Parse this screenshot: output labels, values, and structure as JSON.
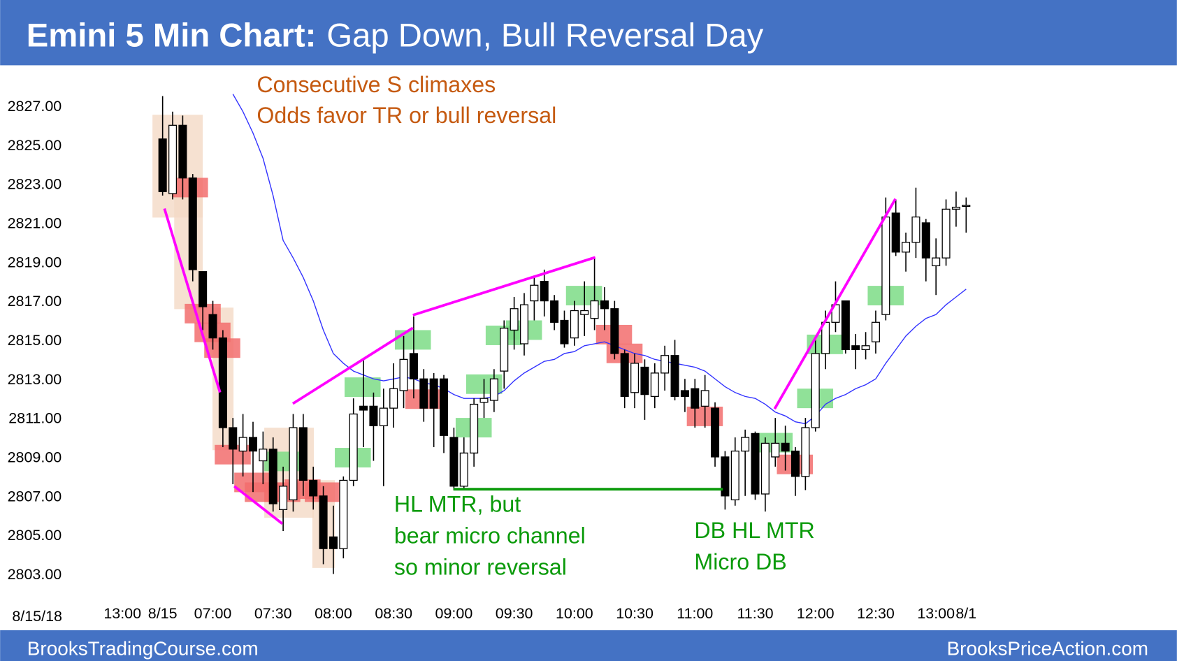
{
  "header": {
    "title_bold": "Emini 5 Min Chart:",
    "title_rest": "Gap Down, Bull Reversal Day"
  },
  "chart_data": {
    "type": "candlestick",
    "date_label": "8/15/18",
    "categories": [
      "13:00",
      null,
      null,
      null,
      "8/15",
      null,
      null,
      null,
      null,
      "07:00",
      null,
      null,
      null,
      null,
      null,
      "07:30",
      null,
      null,
      null,
      null,
      null,
      "08:00",
      null,
      null,
      null,
      null,
      null,
      "08:30",
      null,
      null,
      null,
      null,
      null,
      "09:00",
      null,
      null,
      null,
      null,
      null,
      "09:30",
      null,
      null,
      null,
      null,
      null,
      "10:00",
      null,
      null,
      null,
      null,
      null,
      "10:30",
      null,
      null,
      null,
      null,
      null,
      "11:00",
      null,
      null,
      null,
      null,
      null,
      "11:30",
      null,
      null,
      null,
      null,
      null,
      "12:00",
      null,
      null,
      null,
      null,
      null,
      "12:30",
      null,
      null,
      null,
      null,
      null,
      "13:00",
      null,
      null,
      "8/1"
    ],
    "open": [
      null,
      null,
      null,
      null,
      2825.3,
      2822.5,
      2826.0,
      2823.3,
      2818.5,
      2816.3,
      2815.1,
      2810.5,
      2809.3,
      2810.0,
      2808.8,
      2809.4,
      2806.3,
      2806.8,
      2810.5,
      2807.8,
      2807.0,
      2804.9,
      2804.3,
      2807.8,
      2811.6,
      2811.6,
      2810.6,
      2811.5,
      2812.4,
      2814.3,
      2813.0,
      2813.0,
      2813.0,
      2810.0,
      2807.5,
      2809.2,
      2811.8,
      2811.9,
      2813.4,
      2815.5,
      2814.8,
      2817.0,
      2818.0,
      2817.0,
      2816.0,
      2815.1,
      2816.3,
      2816.1,
      2817.0,
      2816.6,
      2814.3,
      2812.3,
      2813.6,
      2812.1,
      2813.3,
      2814.2,
      2812.4,
      2812.5,
      2811.6,
      2811.5,
      2809.0,
      2806.8,
      2809.3,
      2810.2,
      2807.1,
      2809.0,
      2809.7,
      2809.3,
      2808.0,
      2810.5,
      2814.3,
      2815.9,
      2817.0,
      2814.7,
      2814.5,
      2814.9,
      2816.3,
      2821.5,
      2819.5,
      2820.0,
      2821.0,
      2818.8,
      2819.2,
      2821.7,
      2821.9
    ],
    "high": [
      null,
      null,
      null,
      null,
      2827.5,
      2826.7,
      2826.5,
      2823.5,
      2818.5,
      2817.0,
      2815.5,
      2811.0,
      2811.2,
      2810.8,
      2810.3,
      2810.0,
      2808.5,
      2811.2,
      2811.2,
      2808.5,
      2807.5,
      2806.5,
      2808.0,
      2812.0,
      2814.0,
      2812.3,
      2812.5,
      2813.8,
      2815.2,
      2816.2,
      2813.5,
      2813.3,
      2813.2,
      2810.5,
      2810.0,
      2812.0,
      2813.0,
      2813.5,
      2816.0,
      2817.2,
      2817.4,
      2818.3,
      2818.6,
      2817.3,
      2816.5,
      2817.0,
      2818.0,
      2819.2,
      2817.7,
      2817.0,
      2814.5,
      2814.3,
      2814.0,
      2813.8,
      2814.7,
      2815.0,
      2813.0,
      2813.0,
      2813.2,
      2811.8,
      2809.3,
      2810.0,
      2810.4,
      2810.3,
      2810.0,
      2811.0,
      2810.6,
      2809.5,
      2811.0,
      2815.0,
      2816.5,
      2818.0,
      2817.0,
      2815.3,
      2815.4,
      2816.5,
      2822.3,
      2822.2,
      2820.5,
      2822.8,
      2821.2,
      2820.2,
      2822.2,
      2822.6,
      2822.3
    ],
    "low": [
      null,
      null,
      null,
      null,
      2822.4,
      2822.2,
      2822.2,
      2818.0,
      2815.5,
      2814.5,
      2809.5,
      2807.6,
      2808.0,
      2807.2,
      2807.6,
      2806.2,
      2805.2,
      2806.2,
      2807.0,
      2806.3,
      2803.5,
      2803.0,
      2803.8,
      2807.5,
      2809.5,
      2808.8,
      2807.5,
      2810.5,
      2811.5,
      2812.0,
      2810.8,
      2809.5,
      2809.2,
      2807.3,
      2807.3,
      2808.5,
      2811.0,
      2811.3,
      2812.5,
      2814.5,
      2814.2,
      2816.0,
      2816.2,
      2815.5,
      2814.6,
      2814.7,
      2815.2,
      2815.5,
      2815.5,
      2814.0,
      2811.5,
      2811.5,
      2810.9,
      2811.5,
      2812.4,
      2811.9,
      2811.3,
      2810.5,
      2810.5,
      2808.5,
      2806.3,
      2806.5,
      2807.0,
      2806.8,
      2806.2,
      2808.5,
      2808.3,
      2807.0,
      2807.3,
      2810.3,
      2813.5,
      2815.4,
      2814.3,
      2813.5,
      2814.0,
      2814.3,
      2816.0,
      2819.3,
      2818.5,
      2819.2,
      2818.0,
      2817.3,
      2818.8,
      2820.8,
      2820.5
    ],
    "close": [
      null,
      null,
      null,
      null,
      2822.6,
      2826.0,
      2823.3,
      2818.6,
      2816.7,
      2815.1,
      2810.5,
      2809.4,
      2810.0,
      2809.3,
      2809.4,
      2806.6,
      2807.5,
      2810.5,
      2807.8,
      2807.0,
      2804.3,
      2804.3,
      2807.8,
      2811.2,
      2811.4,
      2810.6,
      2811.5,
      2812.5,
      2814.0,
      2813.0,
      2811.5,
      2811.5,
      2810.1,
      2807.5,
      2809.2,
      2811.7,
      2812.0,
      2813.0,
      2815.6,
      2816.6,
      2816.8,
      2817.8,
      2817.0,
      2815.9,
      2814.8,
      2816.5,
      2816.5,
      2817.0,
      2816.6,
      2814.3,
      2812.1,
      2813.8,
      2812.2,
      2813.3,
      2814.2,
      2812.1,
      2812.1,
      2811.5,
      2812.4,
      2809.0,
      2807.0,
      2809.3,
      2810.0,
      2807.1,
      2809.7,
      2809.7,
      2809.3,
      2808.0,
      2810.5,
      2814.3,
      2815.9,
      2816.8,
      2814.5,
      2814.5,
      2814.7,
      2815.9,
      2821.3,
      2819.5,
      2820.0,
      2821.3,
      2819.2,
      2819.2,
      2821.7,
      2821.8,
      2821.9
    ],
    "up_color": "#ffffff",
    "down_color": "#000000",
    "moving_average": {
      "color": "#3333ff",
      "values": [
        null,
        null,
        null,
        null,
        null,
        null,
        null,
        null,
        null,
        null,
        null,
        2827.6,
        2826.7,
        2825.6,
        2824.3,
        2822.4,
        2820.1,
        2819.2,
        2818.2,
        2817.0,
        2815.5,
        2814.3,
        2813.8,
        2813.4,
        2813.2,
        2813.0,
        2812.9,
        2813.0,
        2813.1,
        2813.0,
        2812.8,
        2812.7,
        2812.5,
        2812.2,
        2812.0,
        2812.0,
        2812.0,
        2812.1,
        2812.4,
        2812.9,
        2813.3,
        2813.6,
        2813.9,
        2814.0,
        2814.3,
        2814.4,
        2814.7,
        2814.8,
        2814.9,
        2814.7,
        2814.5,
        2814.3,
        2814.2,
        2814.0,
        2813.9,
        2813.8,
        2813.7,
        2813.6,
        2813.4,
        2813.0,
        2812.6,
        2812.3,
        2812.1,
        2812.0,
        2811.7,
        2811.3,
        2811.1,
        2810.8,
        2810.7,
        2811.1,
        2811.7,
        2812.0,
        2812.2,
        2812.5,
        2812.7,
        2813.0,
        2813.8,
        2814.5,
        2815.2,
        2815.7,
        2816.1,
        2816.3,
        2816.8,
        2817.2,
        2817.6
      ]
    },
    "ylim": [
      2802,
      2829
    ],
    "yticks": [
      {
        "value": 2803,
        "label": "2803.00"
      },
      {
        "value": 2805,
        "label": "2805.00"
      },
      {
        "value": 2807,
        "label": "2807.00"
      },
      {
        "value": 2809,
        "label": "2809.00"
      },
      {
        "value": 2811,
        "label": "2811.00"
      },
      {
        "value": 2813,
        "label": "2813.00"
      },
      {
        "value": 2815,
        "label": "2815.00"
      },
      {
        "value": 2817,
        "label": "2817.00"
      },
      {
        "value": 2819,
        "label": "2819.00"
      },
      {
        "value": 2821,
        "label": "2821.00"
      },
      {
        "value": 2823,
        "label": "2823.00"
      },
      {
        "value": 2825,
        "label": "2825.00"
      },
      {
        "value": 2827,
        "label": "2827.00"
      }
    ],
    "annotations": [
      {
        "lines": [
          "Consecutive S climaxes",
          "Odds favor TR or bull reversal"
        ],
        "color": "#c55a11"
      },
      {
        "lines": [
          "HL MTR, but",
          "bear micro channel",
          "so minor reversal"
        ],
        "color": "#0a9a0a"
      },
      {
        "lines": [
          "DB HL MTR",
          "Micro DB"
        ],
        "color": "#0a9a0a"
      }
    ]
  },
  "footer": {
    "left": "BrooksTradingCourse.com",
    "right": "BrooksPriceAction.com"
  }
}
